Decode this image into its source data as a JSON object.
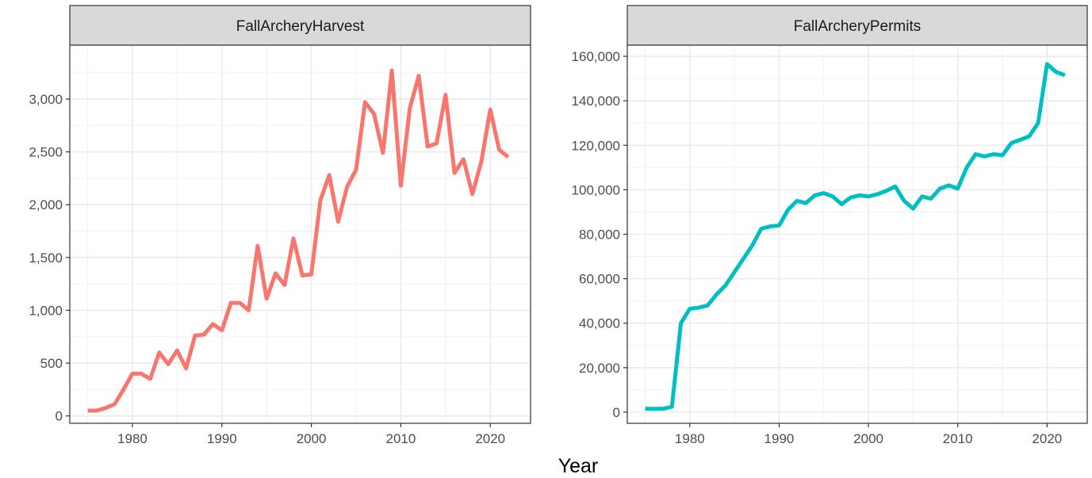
{
  "chart_data": {
    "type": "line",
    "xlabel": "Year",
    "ylabel": "",
    "grid": true,
    "panels": [
      {
        "title": "FallArcheryHarvest",
        "color": "#F8766D",
        "xlim": [
          1973,
          2024.5
        ],
        "ylim": [
          -70,
          3510
        ],
        "xticks": [
          1980,
          1990,
          2000,
          2010,
          2020
        ],
        "xtick_labels": [
          "1980",
          "1990",
          "2000",
          "2010",
          "2020"
        ],
        "yticks": [
          0,
          500,
          1000,
          1500,
          2000,
          2500,
          3000
        ],
        "ytick_labels": [
          "0",
          "500",
          "1,000",
          "1,500",
          "2,000",
          "2,500",
          "3,000"
        ],
        "series": [
          {
            "x": [
              1975,
              1976,
              1977,
              1978,
              1979,
              1980,
              1981,
              1982,
              1983,
              1984,
              1985,
              1986,
              1987,
              1988,
              1989,
              1990,
              1991,
              1992,
              1993,
              1994,
              1995,
              1996,
              1997,
              1998,
              1999,
              2000,
              2001,
              2002,
              2003,
              2004,
              2005,
              2006,
              2007,
              2008,
              2009,
              2010,
              2011,
              2012,
              2013,
              2014,
              2015,
              2016,
              2017,
              2018,
              2019,
              2020,
              2021,
              2022
            ],
            "y": [
              50,
              50,
              75,
              110,
              250,
              400,
              400,
              350,
              600,
              490,
              620,
              450,
              760,
              770,
              870,
              810,
              1070,
              1070,
              1000,
              1610,
              1110,
              1350,
              1240,
              1680,
              1330,
              1340,
              2040,
              2280,
              1840,
              2170,
              2330,
              2970,
              2860,
              2490,
              3270,
              2180,
              2910,
              3220,
              2550,
              2580,
              3040,
              2300,
              2430,
              2100,
              2410,
              2900,
              2520,
              2450
            ]
          }
        ]
      },
      {
        "title": "FallArcheryPermits",
        "color": "#00BFC4",
        "xlim": [
          1973,
          2024.5
        ],
        "ylim": [
          -5000,
          165000
        ],
        "xticks": [
          1980,
          1990,
          2000,
          2010,
          2020
        ],
        "xtick_labels": [
          "1980",
          "1990",
          "2000",
          "2010",
          "2020"
        ],
        "yticks": [
          0,
          20000,
          40000,
          60000,
          80000,
          100000,
          120000,
          140000,
          160000
        ],
        "ytick_labels": [
          "0",
          "20,000",
          "40,000",
          "60,000",
          "80,000",
          "100,000",
          "120,000",
          "140,000",
          "160,000"
        ],
        "series": [
          {
            "x": [
              1975,
              1976,
              1977,
              1978,
              1979,
              1980,
              1981,
              1982,
              1983,
              1984,
              1985,
              1986,
              1987,
              1988,
              1989,
              1990,
              1991,
              1992,
              1993,
              1994,
              1995,
              1996,
              1997,
              1998,
              1999,
              2000,
              2001,
              2002,
              2003,
              2004,
              2005,
              2006,
              2007,
              2008,
              2009,
              2010,
              2011,
              2012,
              2013,
              2014,
              2015,
              2016,
              2017,
              2018,
              2019,
              2020,
              2021,
              2022
            ],
            "y": [
              1500,
              1500,
              1500,
              2500,
              40000,
              46500,
              47000,
              48000,
              53000,
              57000,
              63000,
              69000,
              75000,
              82500,
              83500,
              84000,
              91000,
              95000,
              94000,
              97500,
              98500,
              97000,
              93500,
              96500,
              97500,
              97000,
              98000,
              99500,
              101500,
              95000,
              91500,
              97000,
              96000,
              100500,
              102000,
              100500,
              110000,
              116000,
              115000,
              116000,
              115500,
              121000,
              122500,
              124000,
              130000,
              156500,
              153000,
              151500
            ]
          }
        ]
      }
    ]
  }
}
